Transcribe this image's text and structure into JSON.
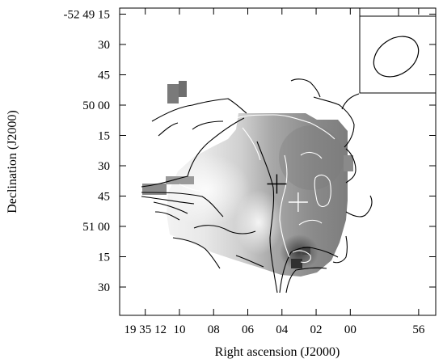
{
  "chart_data": {
    "type": "heatmap",
    "xlabel": "Right ascension (J2000)",
    "ylabel": "Declination (J2000)",
    "x_ticks": [
      {
        "label": "19 35 12",
        "ra_s": 12
      },
      {
        "label": "10",
        "ra_s": 10
      },
      {
        "label": "08",
        "ra_s": 8
      },
      {
        "label": "06",
        "ra_s": 6
      },
      {
        "label": "04",
        "ra_s": 4
      },
      {
        "label": "02",
        "ra_s": 2
      },
      {
        "label": "00",
        "ra_s": 0
      },
      {
        "label": "56",
        "ra_s": -4
      }
    ],
    "y_ticks": [
      {
        "label": "-52 49 15",
        "dec_s": -15
      },
      {
        "label": "30",
        "dec_s": -30
      },
      {
        "label": "45",
        "dec_s": -45
      },
      {
        "label": "50 00",
        "dec_s": -60
      },
      {
        "label": "15",
        "dec_s": -75
      },
      {
        "label": "30",
        "dec_s": -90
      },
      {
        "label": "45",
        "dec_s": -105
      },
      {
        "label": "51 00",
        "dec_s": -120
      },
      {
        "label": "15",
        "dec_s": -135
      },
      {
        "label": "30",
        "dec_s": -150
      }
    ],
    "xlim_ra_s": [
      13.5,
      -5
    ],
    "ylim_dec_s": [
      -12,
      -164
    ],
    "markers": [
      {
        "type": "cross",
        "color": "#000000",
        "ra_s": 4.3,
        "dec_s": -99
      },
      {
        "type": "cross",
        "color": "#ffffff",
        "ra_s": 3.05,
        "dec_s": -108
      }
    ],
    "beam_inset": {
      "shape": "ellipse",
      "position": "top-right"
    },
    "colors": {
      "contour_primary": "#000000",
      "contour_secondary": "#ffffff",
      "background": "#ffffff"
    }
  }
}
